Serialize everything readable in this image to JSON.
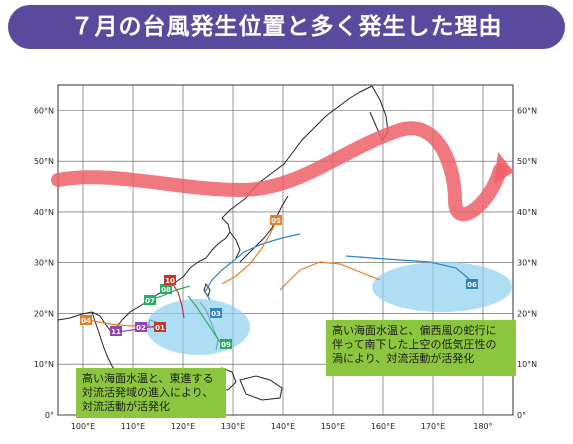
{
  "title": "７月の台風発生位置と多く発生した理由",
  "map": {
    "lat_labels": [
      "60°N",
      "50°N",
      "40°N",
      "30°N",
      "20°N",
      "10°N",
      "0°"
    ],
    "lon_labels": [
      "100°E",
      "110°E",
      "120°E",
      "130°E",
      "140°E",
      "150°E",
      "160°E",
      "170°E",
      "180°"
    ],
    "lon_range": [
      95,
      186
    ],
    "lat_range": [
      0,
      65
    ]
  },
  "typhoons": [
    {
      "id": "01",
      "color": "#c0392b"
    },
    {
      "id": "02",
      "color": "#8e44ad"
    },
    {
      "id": "03",
      "color": "#2e86c1"
    },
    {
      "id": "04",
      "color": "#e67e22"
    },
    {
      "id": "05",
      "color": "#e67e22"
    },
    {
      "id": "06",
      "color": "#2e86c1"
    },
    {
      "id": "07",
      "color": "#27ae60"
    },
    {
      "id": "08",
      "color": "#27ae60"
    },
    {
      "id": "09",
      "color": "#27ae60"
    },
    {
      "id": "10",
      "color": "#c0392b"
    },
    {
      "id": "11",
      "color": "#8e44ad"
    }
  ],
  "notes": {
    "left": [
      "高い海面水温と、東進する",
      "対流活発域の進入により、",
      "対流活動が活発化"
    ],
    "right": [
      "高い海面水温と、偏西風の蛇行に",
      "伴って南下した上空の低気圧性の",
      "渦により、対流活動が活発化"
    ]
  },
  "colors": {
    "banner": "#5a4a9e",
    "jet_stream": "#f0606a",
    "warm_area": "#8dd0ef",
    "note_box": "#8cc63f"
  }
}
